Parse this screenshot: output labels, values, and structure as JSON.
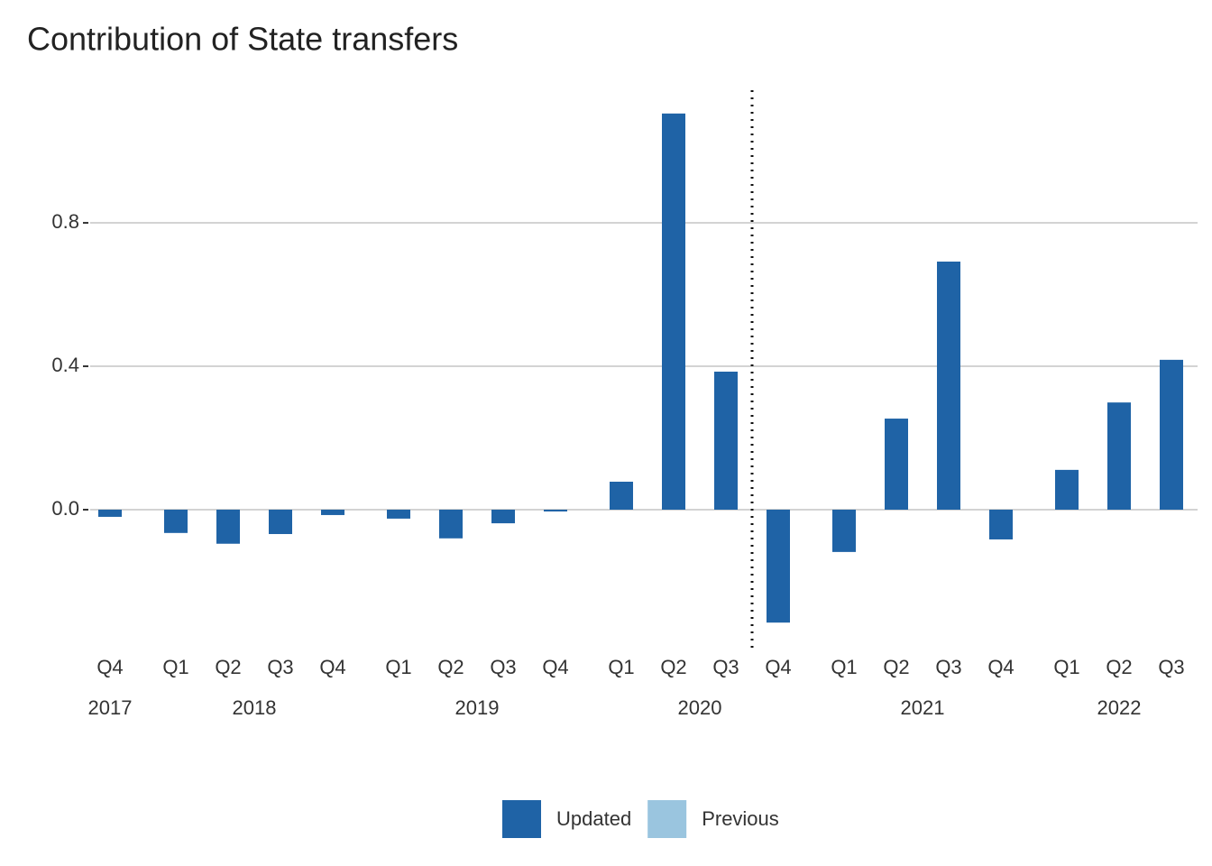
{
  "chart_data": {
    "type": "bar",
    "title": "Contribution of State transfers",
    "groups": [
      {
        "name": "2017",
        "categories": [
          "Q4"
        ]
      },
      {
        "name": "2018",
        "categories": [
          "Q1",
          "Q2",
          "Q3",
          "Q4"
        ]
      },
      {
        "name": "2019",
        "categories": [
          "Q1",
          "Q2",
          "Q3",
          "Q4"
        ]
      },
      {
        "name": "2020",
        "categories": [
          "Q1",
          "Q2",
          "Q3",
          "Q4"
        ]
      },
      {
        "name": "2021",
        "categories": [
          "Q1",
          "Q2",
          "Q3",
          "Q4"
        ]
      },
      {
        "name": "2022",
        "categories": [
          "Q1",
          "Q2",
          "Q3"
        ]
      }
    ],
    "series": [
      {
        "name": "Updated",
        "color": "#1f63a6",
        "values": [
          -0.02,
          -0.065,
          -0.095,
          -0.068,
          -0.015,
          -0.025,
          -0.08,
          -0.038,
          -0.005,
          0.078,
          1.105,
          0.385,
          -0.315,
          -0.118,
          0.254,
          0.692,
          -0.083,
          0.111,
          0.299,
          0.418
        ]
      },
      {
        "name": "Previous",
        "color": "#9ac5df",
        "values": [
          null,
          null,
          null,
          null,
          null,
          null,
          null,
          null,
          null,
          null,
          null,
          null,
          null,
          null,
          null,
          null,
          null,
          null,
          null,
          null
        ]
      }
    ],
    "ylim": [
      -0.385,
      1.17
    ],
    "yticks": [
      {
        "value": 0,
        "label": "0.0"
      },
      0.4,
      0.8
    ],
    "grid": true,
    "legend": "bottom"
  }
}
